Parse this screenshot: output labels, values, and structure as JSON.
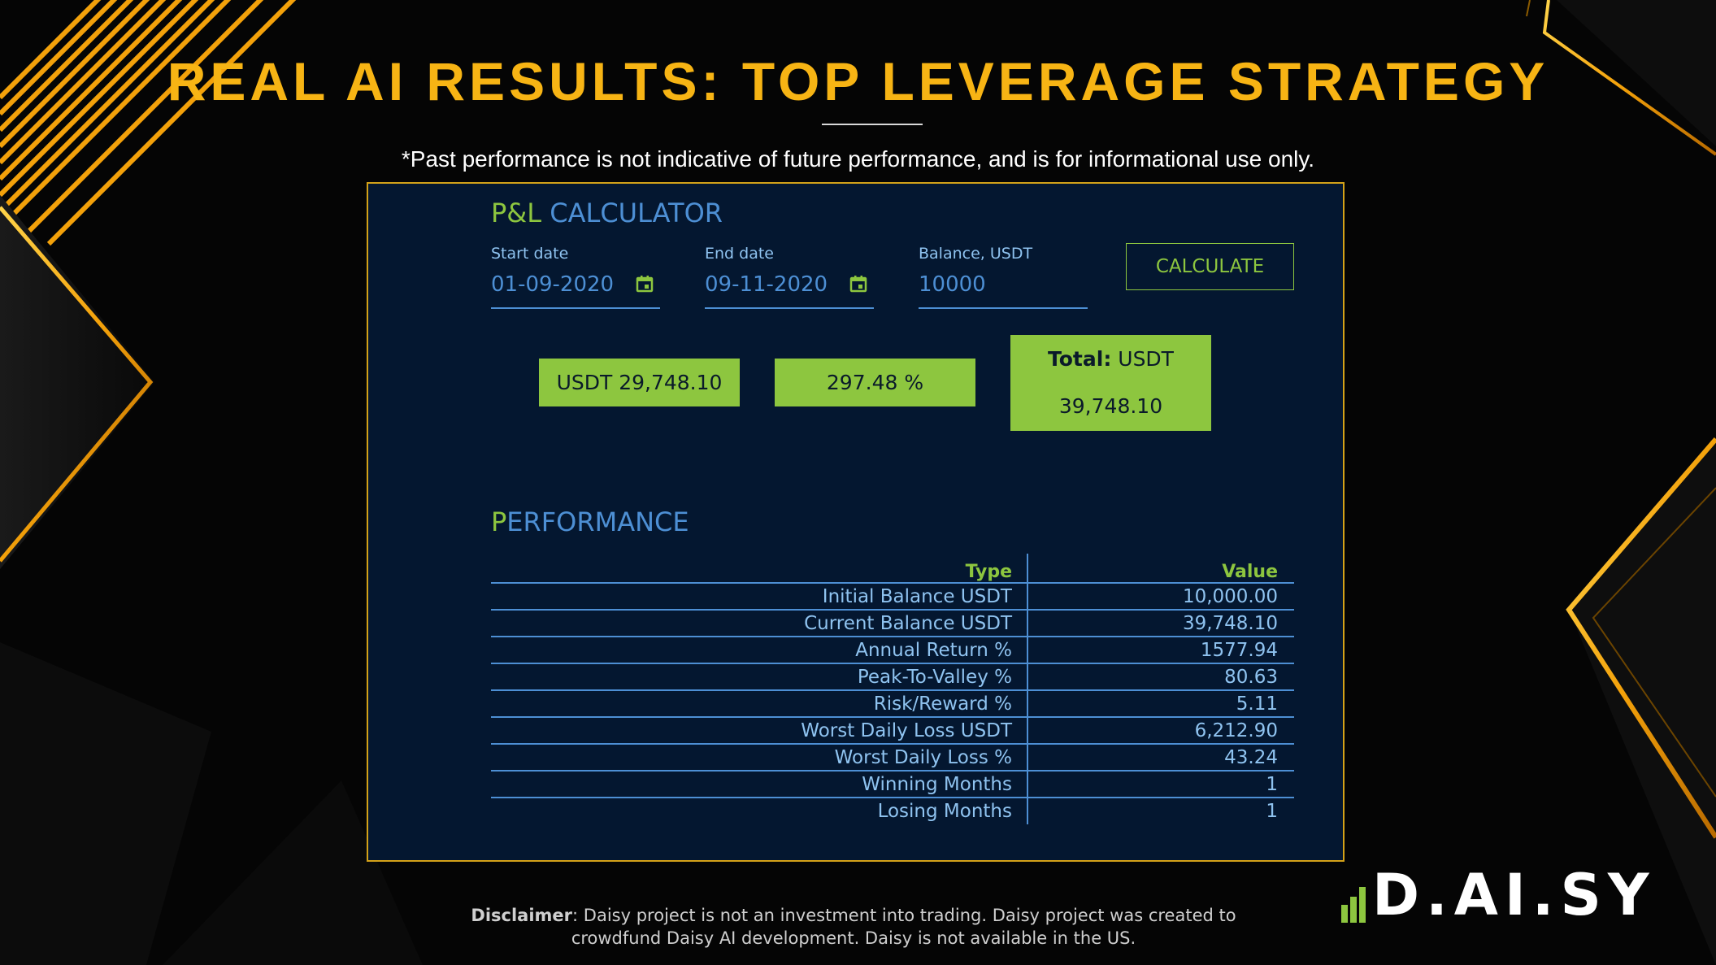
{
  "title": "REAL AI RESULTS: TOP LEVERAGE STRATEGY",
  "notice": "*Past performance is not indicative of future performance, and is for informational use only.",
  "calculator": {
    "heading_first": "P&L",
    "heading_rest": "CALCULATOR",
    "start_label": "Start date",
    "start_value": "01-09-2020",
    "end_label": "End date",
    "end_value": "09-11-2020",
    "balance_label": "Balance, USDT",
    "balance_value": "10000",
    "calculate_label": "CALCULATE",
    "profit_usdt": "USDT 29,748.10",
    "profit_pct": "297.48 %",
    "total_label": "Total:",
    "total_currency": "USDT",
    "total_value": "39,748.10"
  },
  "performance": {
    "heading_first": "P",
    "heading_rest": "ERFORMANCE",
    "col_type": "Type",
    "col_value": "Value",
    "rows": [
      {
        "type": "Initial Balance USDT",
        "value": "10,000.00"
      },
      {
        "type": "Current Balance USDT",
        "value": "39,748.10"
      },
      {
        "type": "Annual Return %",
        "value": "1577.94"
      },
      {
        "type": "Peak-To-Valley %",
        "value": "80.63"
      },
      {
        "type": "Risk/Reward %",
        "value": "5.11"
      },
      {
        "type": "Worst Daily Loss USDT",
        "value": "6,212.90"
      },
      {
        "type": "Worst Daily Loss %",
        "value": "43.24"
      },
      {
        "type": "Winning Months",
        "value": "1"
      },
      {
        "type": "Losing Months",
        "value": "1"
      }
    ]
  },
  "disclaimer": {
    "label": "Disclaimer",
    "text": ":  Daisy project is not an investment into trading. Daisy project was created to crowdfund Daisy AI development. Daisy is not available in the US."
  },
  "logo_text": "D.AI.SY",
  "colors": {
    "gold": "#f7b414",
    "green": "#8dc63f",
    "blue": "#4d8fd4",
    "panel": "#041730"
  },
  "icons": [
    "calendar-icon",
    "logo-bars-icon"
  ]
}
